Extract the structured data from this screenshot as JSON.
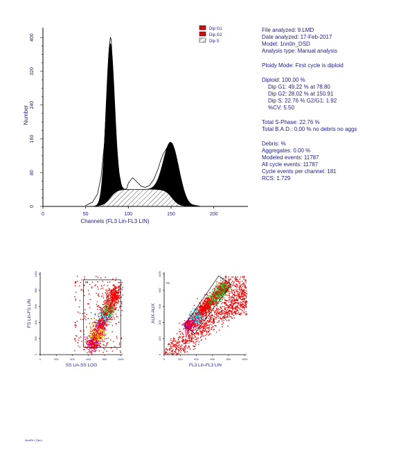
{
  "chart_data": [
    {
      "type": "area",
      "title": "",
      "xlabel": "Channels (FL3 Lin-FL3 LIN)",
      "ylabel": "Number",
      "xlim": [
        0,
        240
      ],
      "x_ticks": [
        "0",
        "50",
        "100",
        "150",
        "200"
      ],
      "y_ticks": [
        "0",
        "80",
        "160",
        "240",
        "320",
        "400"
      ],
      "legend_position": "top-right",
      "legend": [
        {
          "label": "Dip G1",
          "style": "solid",
          "color": "#cc1111"
        },
        {
          "label": "Dip G2",
          "style": "solid",
          "color": "#cc1111"
        },
        {
          "label": "Dip S",
          "style": "hatched",
          "color": "#000000"
        }
      ],
      "series": [
        {
          "name": "Dip G1",
          "type": "gaussian",
          "mean": 78.8,
          "peak": 365,
          "sd": 5.0
        },
        {
          "name": "Dip G2",
          "type": "gaussian",
          "mean": 150.91,
          "peak": 130,
          "sd": 9.0
        },
        {
          "name": "Dip S",
          "type": "plateau",
          "from": 78.8,
          "to": 150.91,
          "level": 40
        }
      ],
      "raw_histogram": {
        "x": [
          50,
          58,
          64,
          68,
          72,
          75,
          77,
          78,
          79,
          80,
          81,
          83,
          86,
          89,
          92,
          95,
          98,
          100,
          105,
          110,
          115,
          120,
          125,
          130,
          135,
          138,
          141,
          144,
          147,
          150,
          152,
          154,
          156,
          158,
          160,
          163,
          166,
          170,
          175,
          180,
          185
        ],
        "y": [
          2,
          10,
          30,
          70,
          150,
          270,
          360,
          385,
          400,
          395,
          350,
          260,
          150,
          80,
          48,
          40,
          42,
          55,
          68,
          58,
          48,
          45,
          50,
          65,
          90,
          110,
          125,
          135,
          145,
          140,
          145,
          135,
          118,
          95,
          70,
          45,
          25,
          10,
          4,
          2,
          0
        ]
      }
    },
    {
      "type": "scatter",
      "title": "",
      "xlabel": "SS Lin-SS LOG",
      "ylabel": "FS Lin-FS LIN",
      "x_ticks": [
        "0",
        "200",
        "400",
        "600",
        "800",
        "1000"
      ],
      "y_ticks": [
        "0",
        "200",
        "400",
        "600",
        "800",
        "1000"
      ],
      "xlim": [
        0,
        1024
      ],
      "ylim": [
        0,
        1024
      ],
      "gate": {
        "label": "R1",
        "x": [
          540,
          1000
        ],
        "y": [
          90,
          930
        ]
      },
      "colors": [
        "#ee0000",
        "#22bb22",
        "#00ccee",
        "#cc00cc",
        "#ffff00"
      ]
    },
    {
      "type": "scatter",
      "title": "",
      "xlabel": "FL3 Lin-FL3 LIN",
      "ylabel": "AUX-AUX",
      "x_ticks": [
        "0",
        "200",
        "400",
        "600",
        "800",
        "1000"
      ],
      "y_ticks": [
        "0",
        "200",
        "400",
        "600",
        "800",
        "1000"
      ],
      "xlim": [
        0,
        1024
      ],
      "ylim": [
        0,
        1024
      ],
      "gate": {
        "label": "R2",
        "polygon": [
          [
            250,
            360
          ],
          [
            680,
            980
          ],
          [
            830,
            870
          ],
          [
            380,
            260
          ]
        ]
      },
      "colors": [
        "#ee0000",
        "#22bb22",
        "#00ccee",
        "#cc00cc"
      ]
    }
  ],
  "info": {
    "file": "File analyzed: 9.LMD",
    "date": "Date analyzed: 17-Feb-2017",
    "model": "Model: 1nn0n_DSD",
    "analysis": "Analysis type: Manual analysis",
    "ploidy": "Ploidy Mode: First cycle is diploid",
    "diploid": "Diploid: 100.00 %",
    "g1": "Dip G1: 49.22 % at 78.80",
    "g2": "Dip G2: 28.02 % at 150.91",
    "s": "Dip S: 22.76 %    G2/G1: 1.92",
    "cv": "%CV: 5.50",
    "total_s": "Total S-Phase: 22.76 %",
    "total_bad": "Total B.A.D.: 0.00 %    no debris no aggs",
    "debris": "Debris:  %",
    "aggregates": "Aggregates: 0.00 %",
    "modeled": "Modeled events: 11787",
    "all_cycle": "All cycle events: 11787",
    "cycle_per_channel": "Cycle events per channel: 181",
    "rcs": "RCS: 1.729"
  },
  "footer": "ModFit LT(tm)"
}
